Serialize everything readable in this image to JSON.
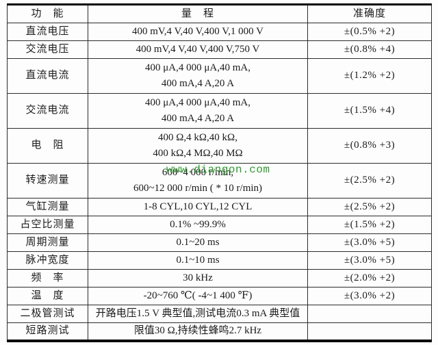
{
  "watermark": {
    "text": "www.diangon.com",
    "color": "#2f9b2f"
  },
  "table": {
    "headers": {
      "function": "功　能",
      "range": "量　程",
      "accuracy": "准确度"
    },
    "rows": [
      {
        "function": "直流电压",
        "range": [
          "400 mV,4 V,40 V,400 V,1 000 V"
        ],
        "accuracy": "±(0.5% +2)"
      },
      {
        "function": "交流电压",
        "range": [
          "400 mV,4 V,40 V,400 V,750 V"
        ],
        "accuracy": "±(0.8% +4)"
      },
      {
        "function": "直流电流",
        "range": [
          "400 μA,4 000 μA,40 mA,",
          "400 mA,4 A,20 A"
        ],
        "accuracy": "±(1.2% +2)"
      },
      {
        "function": "交流电流",
        "range": [
          "400 μA,4 000 μA,40 mA,",
          "400 mA,4 A,20 A"
        ],
        "accuracy": "±(1.5% +4)"
      },
      {
        "function": "电　阻",
        "range": [
          "400 Ω,4 kΩ,40 kΩ,",
          "400 kΩ,4 MΩ,40 MΩ"
        ],
        "accuracy": "±(0.8% +3)"
      },
      {
        "function": "转速测量",
        "range": [
          "600~4 000 r/min,",
          "600~12 000 r/min ( * 10 r/min)"
        ],
        "accuracy": "±(2.5% +2)"
      },
      {
        "function": "气缸测量",
        "range": [
          "1-8 CYL,10 CYL,12 CYL"
        ],
        "accuracy": "±(2.5% +2)"
      },
      {
        "function": "占空比测量",
        "range": [
          "0.1% ~99.9%"
        ],
        "accuracy": "±(1.5% +2)"
      },
      {
        "function": "周期测量",
        "range": [
          "0.1~20 ms"
        ],
        "accuracy": "±(3.0% +5)"
      },
      {
        "function": "脉冲宽度",
        "range": [
          "0.1~10 ms"
        ],
        "accuracy": "±(3.0% +5)"
      },
      {
        "function": "频　率",
        "range": [
          "30 kHz"
        ],
        "accuracy": "±(2.0% +2)"
      },
      {
        "function": "温　度",
        "range": [
          "-20~760 ℃( -4~1 400 ℉)"
        ],
        "accuracy": "±(3.0% +2)"
      },
      {
        "function": "二极管测试",
        "range": [
          "开路电压1.5 V 典型值,测试电流0.3 mA 典型值"
        ],
        "accuracy": ""
      },
      {
        "function": "短路测试",
        "range": [
          "限值30 Ω,持续性蜂鸣2.7 kHz"
        ],
        "accuracy": ""
      }
    ]
  }
}
